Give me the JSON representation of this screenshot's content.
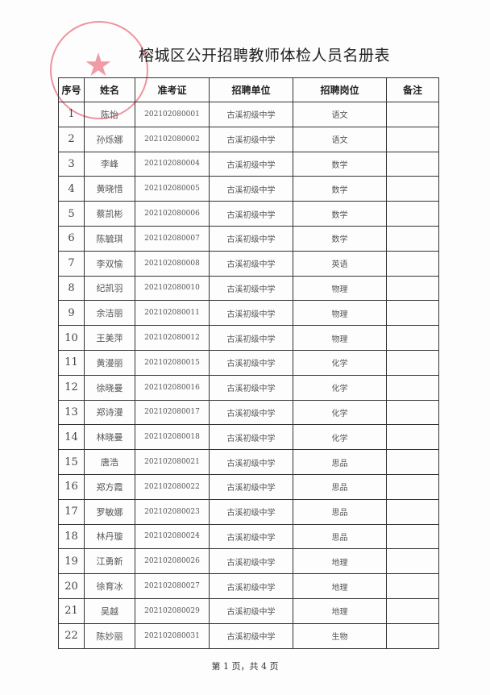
{
  "title": "榕城区公开招聘教师体检人员名册表",
  "headers": [
    "序号",
    "姓名",
    "准考证",
    "招聘单位",
    "招聘岗位",
    "备注"
  ],
  "rows": [
    [
      "1",
      "陈怡",
      "202102080001",
      "古溪初级中学",
      "语文",
      ""
    ],
    [
      "2",
      "孙烁娜",
      "202102080002",
      "古溪初级中学",
      "语文",
      ""
    ],
    [
      "3",
      "李峰",
      "202102080004",
      "古溪初级中学",
      "数学",
      ""
    ],
    [
      "4",
      "黄晓惜",
      "202102080005",
      "古溪初级中学",
      "数学",
      ""
    ],
    [
      "5",
      "蔡凯彬",
      "202102080006",
      "古溪初级中学",
      "数学",
      ""
    ],
    [
      "6",
      "陈毓琪",
      "202102080007",
      "古溪初级中学",
      "数学",
      ""
    ],
    [
      "7",
      "李双愉",
      "202102080008",
      "古溪初级中学",
      "英语",
      ""
    ],
    [
      "8",
      "纪凯羽",
      "202102080010",
      "古溪初级中学",
      "物理",
      ""
    ],
    [
      "9",
      "余洁丽",
      "202102080011",
      "古溪初级中学",
      "物理",
      ""
    ],
    [
      "10",
      "王美萍",
      "202102080012",
      "古溪初级中学",
      "物理",
      ""
    ],
    [
      "11",
      "黄漫丽",
      "202102080015",
      "古溪初级中学",
      "化学",
      ""
    ],
    [
      "12",
      "徐晓曼",
      "202102080016",
      "古溪初级中学",
      "化学",
      ""
    ],
    [
      "13",
      "郑诗漫",
      "202102080017",
      "古溪初级中学",
      "化学",
      ""
    ],
    [
      "14",
      "林晓曼",
      "202102080018",
      "古溪初级中学",
      "化学",
      ""
    ],
    [
      "15",
      "唐浩",
      "202102080021",
      "古溪初级中学",
      "思品",
      ""
    ],
    [
      "16",
      "郑方霞",
      "202102080022",
      "古溪初级中学",
      "思品",
      ""
    ],
    [
      "17",
      "罗敏娜",
      "202102080023",
      "古溪初级中学",
      "思品",
      ""
    ],
    [
      "18",
      "林丹璇",
      "202102080024",
      "古溪初级中学",
      "思品",
      ""
    ],
    [
      "19",
      "江勇新",
      "202102080026",
      "古溪初级中学",
      "地理",
      ""
    ],
    [
      "20",
      "徐育冰",
      "202102080027",
      "古溪初级中学",
      "地理",
      ""
    ],
    [
      "21",
      "吴越",
      "202102080029",
      "古溪初级中学",
      "地理",
      ""
    ],
    [
      "22",
      "陈妙丽",
      "202102080031",
      "古溪初级中学",
      "生物",
      ""
    ]
  ],
  "footer": "第 1 页，共 4 页",
  "seal_color": "#e13c50"
}
